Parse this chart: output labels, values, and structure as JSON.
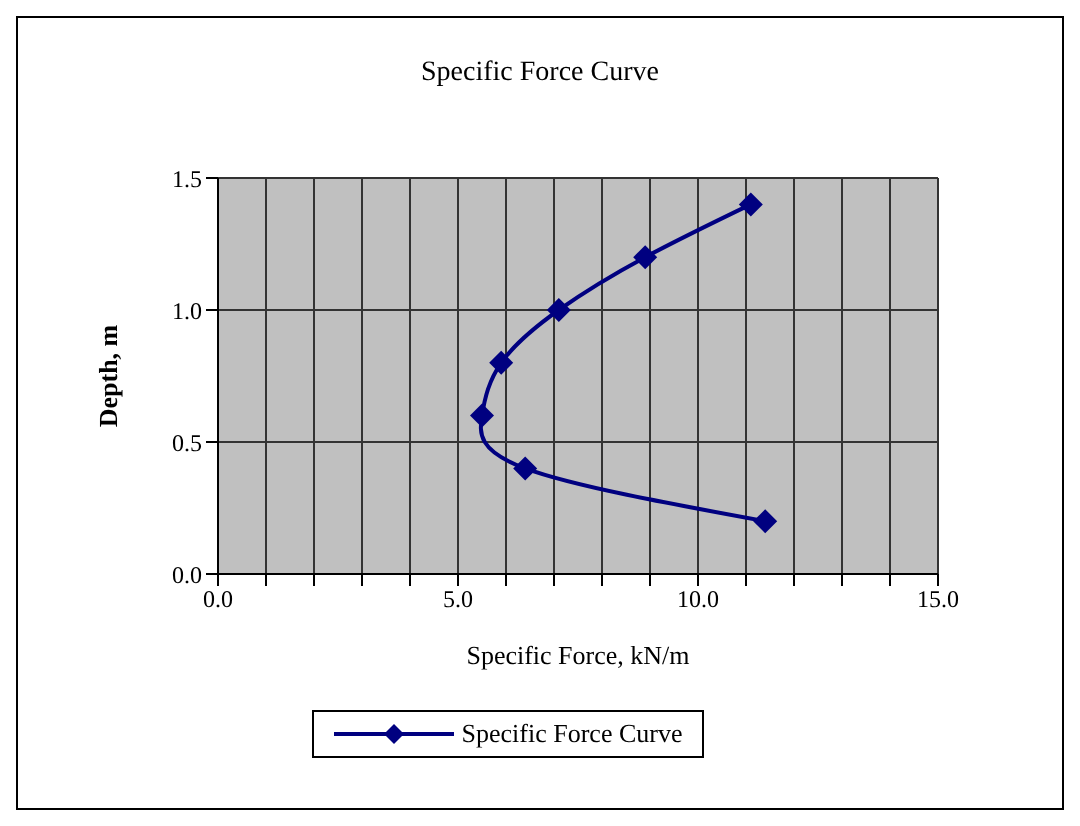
{
  "chart_data": {
    "type": "line",
    "title": "Specific Force Curve",
    "xlabel": "Specific Force, kN/m",
    "ylabel": "Depth, m",
    "x": [
      11.4,
      6.4,
      5.5,
      5.9,
      7.1,
      8.9,
      11.1
    ],
    "series": [
      {
        "name": "Specific Force Curve",
        "color": "#000080",
        "values": [
          0.2,
          0.4,
          0.6,
          0.8,
          1.0,
          1.2,
          1.4
        ]
      }
    ],
    "xlim": [
      0,
      15
    ],
    "xticks": [
      {
        "value": 0,
        "label": "0.0"
      },
      {
        "value": 1,
        "label": null
      },
      {
        "value": 2,
        "label": null
      },
      {
        "value": 3,
        "label": null
      },
      {
        "value": 4,
        "label": null
      },
      {
        "value": 5,
        "label": "5.0"
      },
      {
        "value": 6,
        "label": null
      },
      {
        "value": 7,
        "label": null
      },
      {
        "value": 8,
        "label": null
      },
      {
        "value": 9,
        "label": null
      },
      {
        "value": 10,
        "label": "10.0"
      },
      {
        "value": 11,
        "label": null
      },
      {
        "value": 12,
        "label": null
      },
      {
        "value": 13,
        "label": null
      },
      {
        "value": 14,
        "label": null
      },
      {
        "value": 15,
        "label": "15.0"
      }
    ],
    "ylim": [
      0,
      1.5
    ],
    "yticks": [
      {
        "value": 0,
        "label": "0.0"
      },
      {
        "value": 0.5,
        "label": "0.5"
      },
      {
        "value": 1,
        "label": "1.0"
      },
      {
        "value": 1.5,
        "label": "1.5"
      }
    ],
    "grid": true,
    "legend": "bottom",
    "marker": "diamond",
    "line_style": "solid"
  }
}
